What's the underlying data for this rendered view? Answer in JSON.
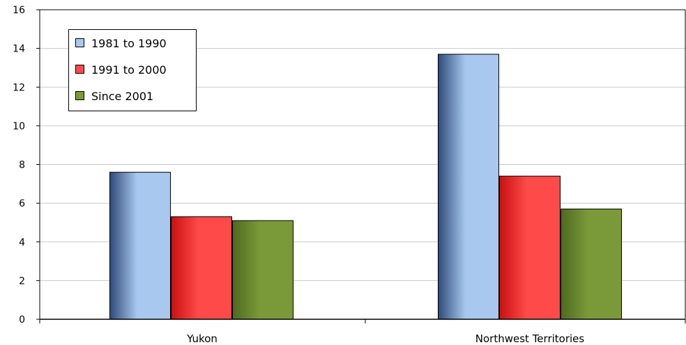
{
  "chart_data": {
    "type": "bar",
    "categories": [
      "Yukon",
      "Northwest Territories"
    ],
    "series": [
      {
        "name": "1981 to 1990",
        "values": [
          7.6,
          13.7
        ],
        "color": "#a8c8ef",
        "shade": "#2f4a78"
      },
      {
        "name": "1991 to 2000",
        "values": [
          5.3,
          7.4
        ],
        "color": "#ff4a4a",
        "shade": "#c81010"
      },
      {
        "name": "Since 2001",
        "values": [
          5.1,
          5.7
        ],
        "color": "#7a9a3a",
        "shade": "#4e6a1e"
      }
    ],
    "yticks": [
      "0",
      "2",
      "4",
      "6",
      "8",
      "10",
      "12",
      "14",
      "16"
    ],
    "ylim": [
      0,
      16
    ],
    "grid": true,
    "legend": "top-left"
  }
}
